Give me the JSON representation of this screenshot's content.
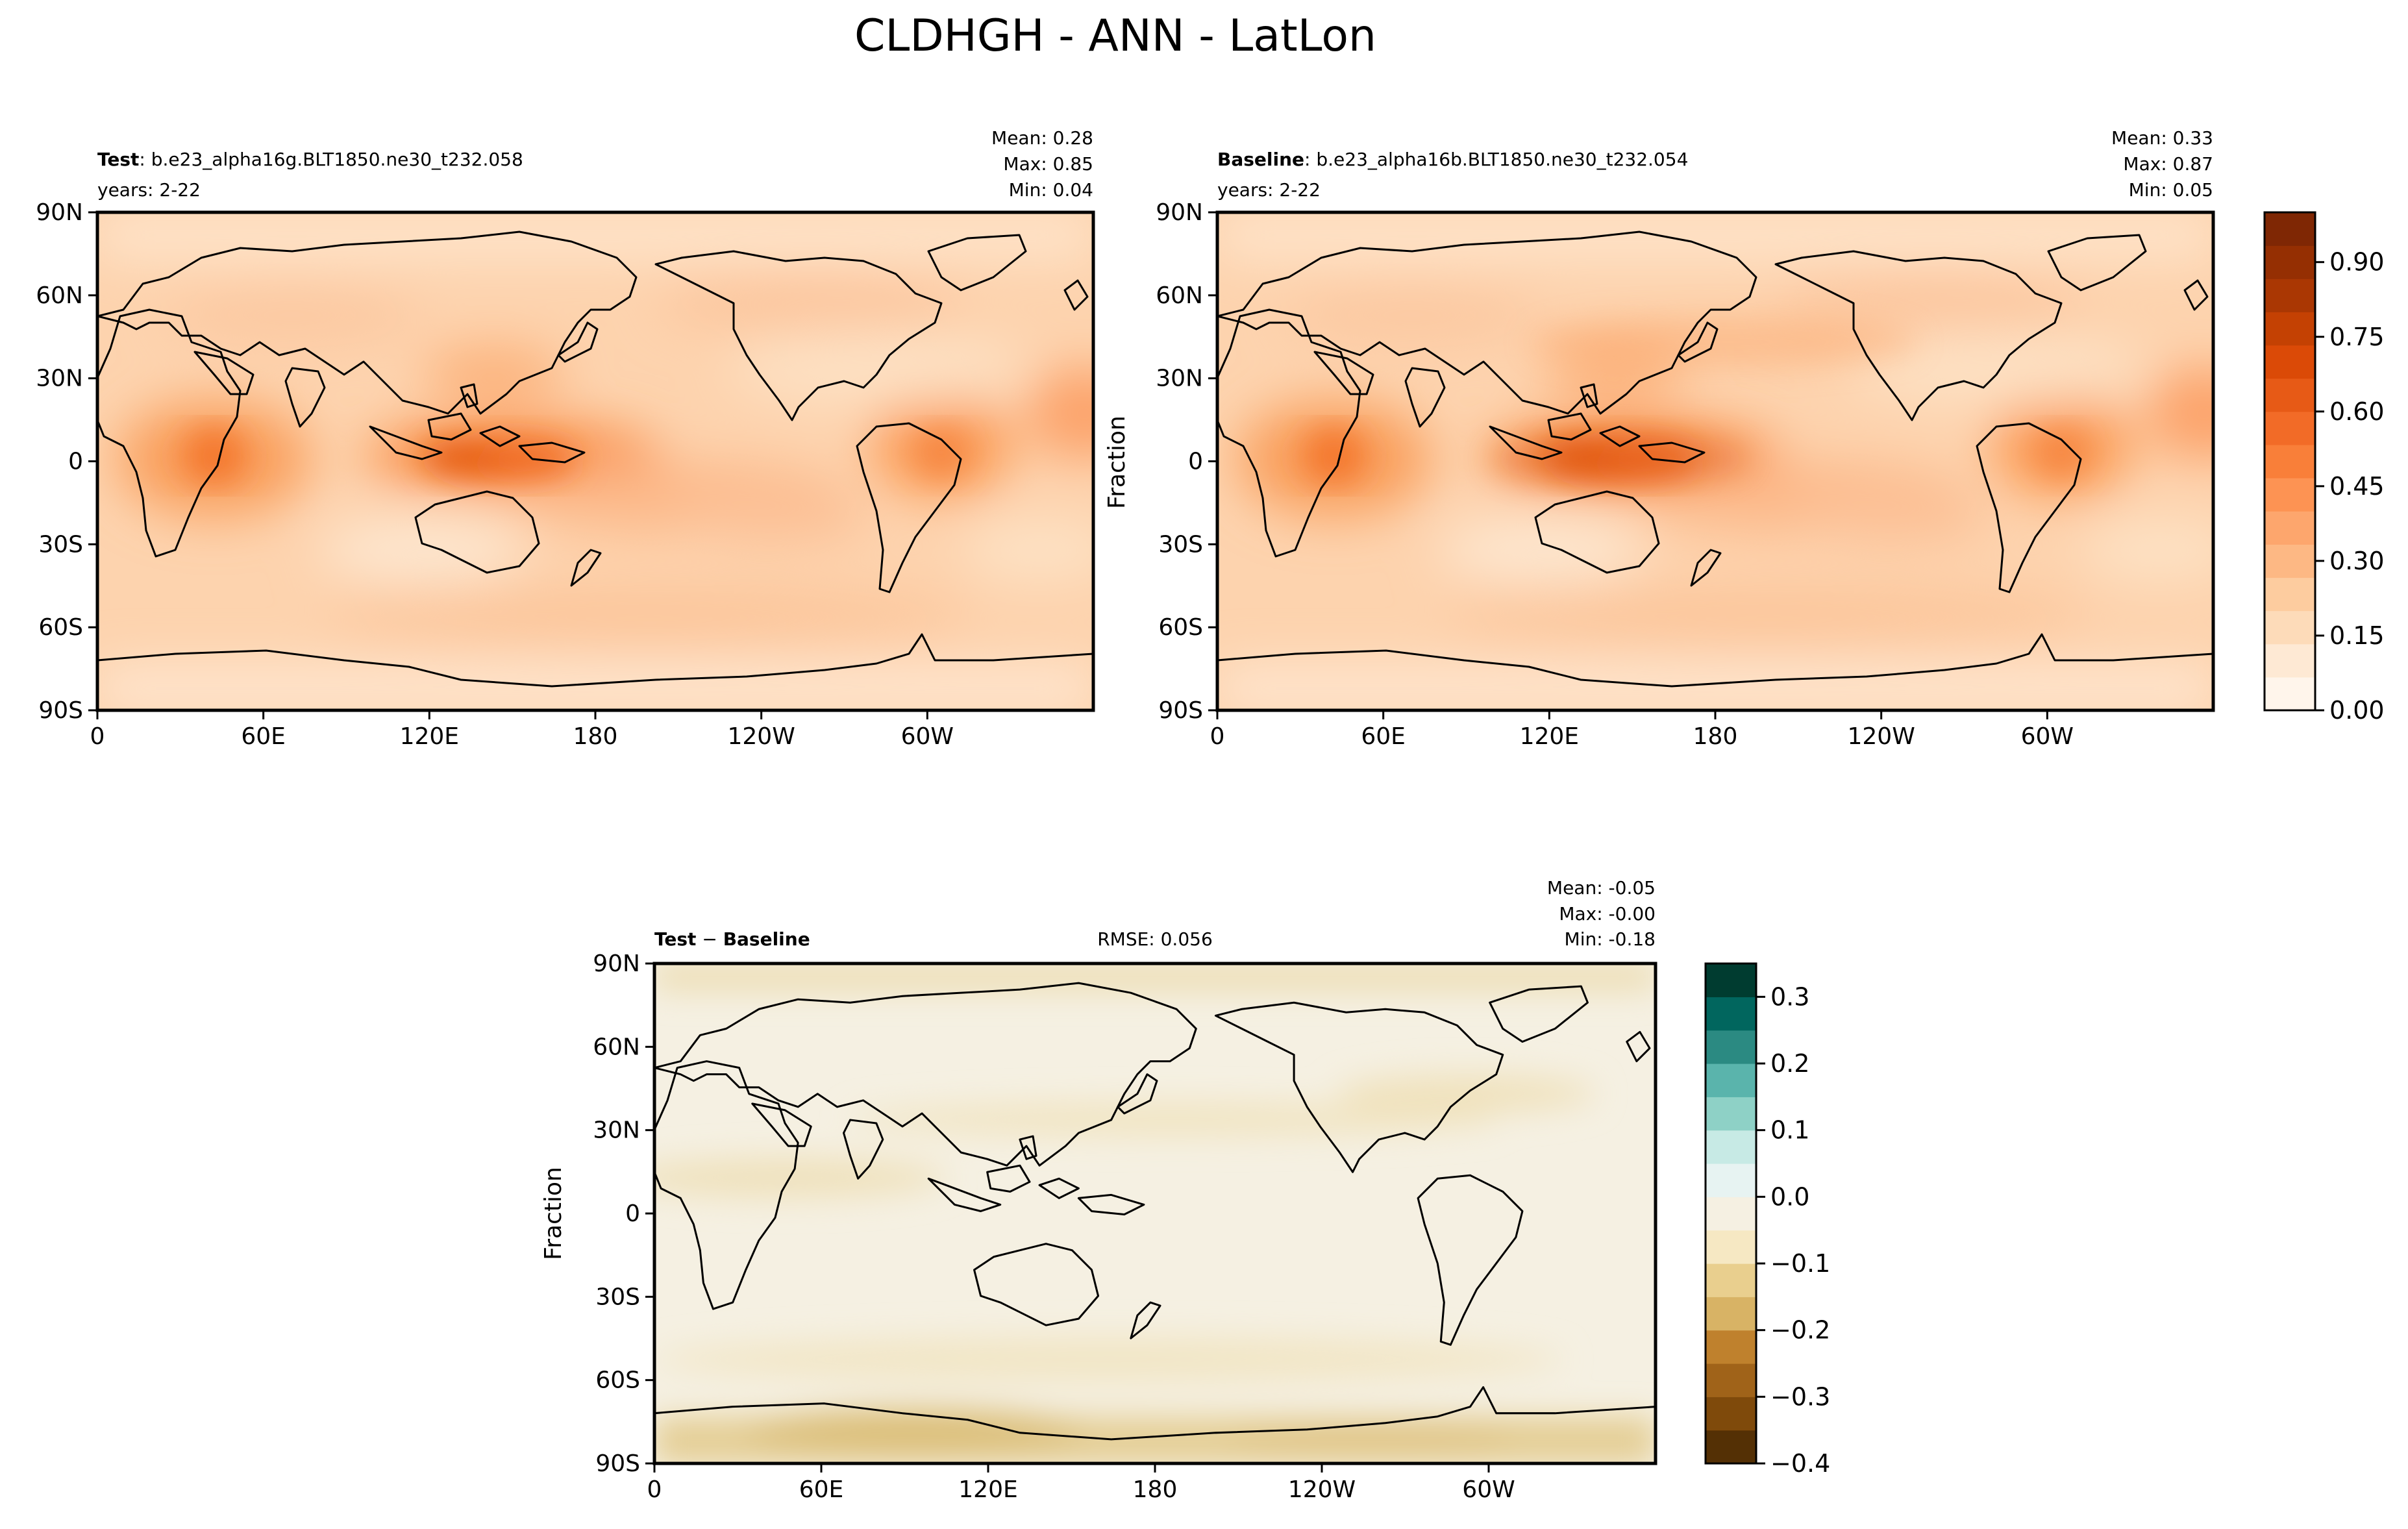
{
  "figure": {
    "title": "CLDHGH - ANN - LatLon"
  },
  "lat_ticks": [
    "90N",
    "60N",
    "30N",
    "0",
    "30S",
    "60S",
    "90S"
  ],
  "lon_ticks": [
    "0",
    "60E",
    "120E",
    "180",
    "120W",
    "60W"
  ],
  "panels": [
    {
      "id": "test",
      "label_bold": "Test",
      "label_rest": ": b.e23_alpha16g.BLT1850.ne30_t232.058",
      "years": "years: 2-22",
      "ylabel": "",
      "stats": {
        "mean": "Mean:  0.28",
        "max": "Max:  0.85",
        "min": "Min:  0.04"
      },
      "colormap": "Oranges"
    },
    {
      "id": "baseline",
      "label_bold": "Baseline",
      "label_rest": ": b.e23_alpha16b.BLT1850.ne30_t232.054",
      "years": "years: 2-22",
      "ylabel": "Fraction",
      "stats": {
        "mean": "Mean:  0.33",
        "max": "Max:  0.87",
        "min": "Min:  0.05"
      },
      "colormap": "Oranges"
    },
    {
      "id": "diff",
      "label_bold": "Test",
      "label_mid": " − ",
      "label_bold2": "Baseline",
      "rmse": "RMSE: 0.056",
      "ylabel": "Fraction",
      "stats": {
        "mean": "Mean: -0.05",
        "max": "Max: -0.00",
        "min": "Min: -0.18"
      },
      "colormap": "BrBG"
    }
  ],
  "colorbars": [
    {
      "id": "cbar-main",
      "ticks": [
        "0.00",
        "0.15",
        "0.30",
        "0.45",
        "0.60",
        "0.75",
        "0.90"
      ],
      "range": [
        0.0,
        1.0
      ],
      "colors": [
        "#fff5eb",
        "#fee9d4",
        "#fddbb9",
        "#fdcc9f",
        "#fdb884",
        "#fda66d",
        "#fd9353",
        "#f97f39",
        "#f26b27",
        "#e75a16",
        "#db4a07",
        "#c44103",
        "#aa3703",
        "#952f02",
        "#7f2704"
      ]
    },
    {
      "id": "cbar-diff",
      "ticks": [
        "0.3",
        "0.2",
        "0.1",
        "0.0",
        "−0.1",
        "−0.2",
        "−0.3",
        "−0.4"
      ],
      "range": [
        -0.4,
        0.35
      ],
      "colors": [
        "#543005",
        "#7f4a0b",
        "#a06319",
        "#bf812d",
        "#d8b365",
        "#e9cf8e",
        "#f6e8c3",
        "#f5f0e2",
        "#e7f3f2",
        "#c7eae5",
        "#8ed1c6",
        "#5ab4ac",
        "#2b8a82",
        "#01665e",
        "#003c30"
      ]
    }
  ]
}
